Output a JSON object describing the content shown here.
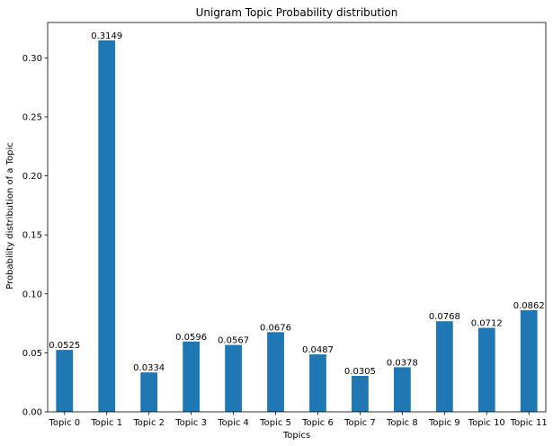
{
  "chart_data": {
    "type": "bar",
    "title": "Unigram Topic Probability distribution",
    "xlabel": "Topics",
    "ylabel": "Probability distribution of a Topic",
    "categories": [
      "Topic 0",
      "Topic 1",
      "Topic 2",
      "Topic 3",
      "Topic 4",
      "Topic 5",
      "Topic 6",
      "Topic 7",
      "Topic 8",
      "Topic 9",
      "Topic 10",
      "Topic 11"
    ],
    "values": [
      0.0525,
      0.3149,
      0.0334,
      0.0596,
      0.0567,
      0.0676,
      0.0487,
      0.0305,
      0.0378,
      0.0768,
      0.0712,
      0.0862
    ],
    "data_labels": [
      "0.0525",
      "0.3149",
      "0.0334",
      "0.0596",
      "0.0567",
      "0.0676",
      "0.0487",
      "0.0305",
      "0.0378",
      "0.0768",
      "0.0712",
      "0.0862"
    ],
    "ylim": [
      0,
      0.33
    ],
    "yticks": [
      0.0,
      0.05,
      0.1,
      0.15,
      0.2,
      0.25,
      0.3
    ],
    "ytick_labels": [
      "0.00",
      "0.05",
      "0.10",
      "0.15",
      "0.20",
      "0.25",
      "0.30"
    ],
    "bar_color": "#1f77b4",
    "grid": false
  }
}
